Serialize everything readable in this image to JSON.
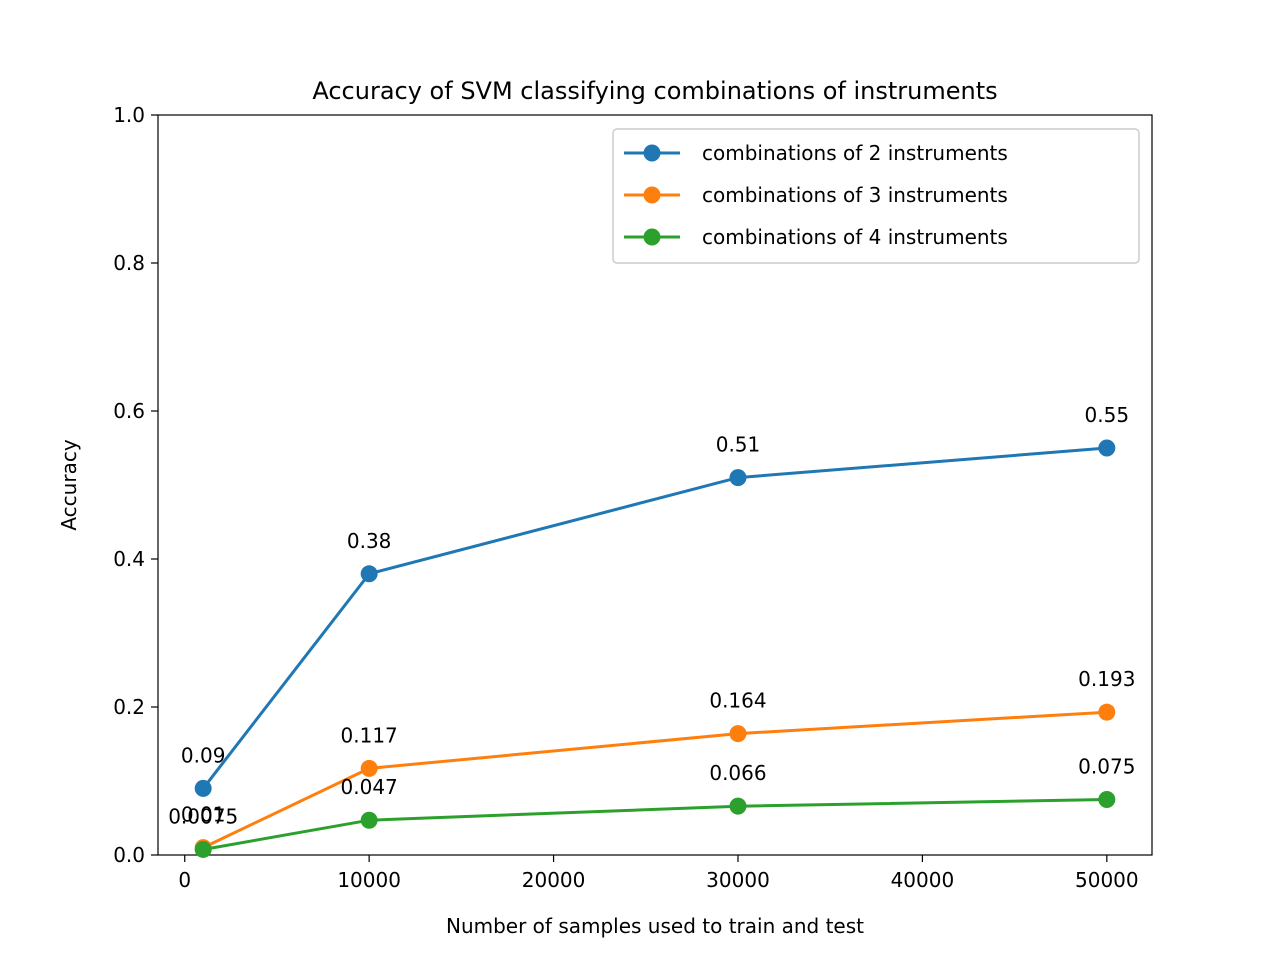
{
  "chart_data": {
    "type": "line",
    "title": "Accuracy of SVM classifying combinations of instruments",
    "xlabel": "Number of samples used to train and test",
    "ylabel": "Accuracy",
    "xlim": [
      -1450,
      52450
    ],
    "ylim": [
      0,
      1.0
    ],
    "xticks": [
      0,
      10000,
      20000,
      30000,
      40000,
      50000
    ],
    "xtick_labels": [
      "0",
      "10000",
      "20000",
      "30000",
      "40000",
      "50000"
    ],
    "yticks": [
      0.0,
      0.2,
      0.4,
      0.6,
      0.8,
      1.0
    ],
    "ytick_labels": [
      "0.0",
      "0.2",
      "0.4",
      "0.6",
      "0.8",
      "1.0"
    ],
    "grid": false,
    "legend_position": "top-right",
    "x": [
      1000,
      10000,
      30000,
      50000
    ],
    "series": [
      {
        "name": "combinations of 2 instruments",
        "color": "#1f77b4",
        "values": [
          0.09,
          0.38,
          0.51,
          0.55
        ],
        "labels": [
          "0.09",
          "0.38",
          "0.51",
          "0.55"
        ]
      },
      {
        "name": "combinations of 3 instruments",
        "color": "#ff7f0e",
        "values": [
          0.01,
          0.117,
          0.164,
          0.193
        ],
        "labels": [
          "0.01",
          "0.117",
          "0.164",
          "0.193"
        ]
      },
      {
        "name": "combinations of 4 instruments",
        "color": "#2ca02c",
        "values": [
          0.0075,
          0.047,
          0.066,
          0.075
        ],
        "labels": [
          "0.0075",
          "0.047",
          "0.066",
          "0.075"
        ]
      }
    ]
  }
}
